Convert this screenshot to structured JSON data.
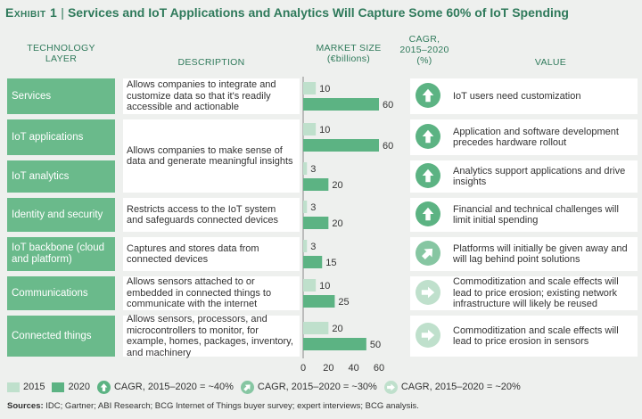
{
  "title": {
    "exhibit": "Exhibit 1",
    "separator": "|",
    "text": "Services and IoT Applications and Analytics Will Capture Some 60% of IoT Spending"
  },
  "headers": {
    "layer_line1": "TECHNOLOGY",
    "layer_line2": "LAYER",
    "description": "DESCRIPTION",
    "market_line1": "MARKET SIZE",
    "market_line2": "(€billions)",
    "cagr_line1": "CAGR,",
    "cagr_line2": "2015–2020",
    "cagr_line3": "(%)",
    "value": "VALUE"
  },
  "colors": {
    "s2015": "#bfe0cc",
    "s2020": "#5cb383",
    "label_bg": "#6aba8b",
    "icon_40": "#5cb383",
    "icon_30": "#86c6a2",
    "icon_20": "#bfe0cc"
  },
  "rows": [
    {
      "layer": "Services",
      "description": "Allows companies to integrate and customize data so that it's readily accessible and actionable",
      "value": "IoT users need customization",
      "cagr": "~40%",
      "icon": "arrow-up-icon"
    },
    {
      "layer": "IoT applications",
      "description": "Allows companies to make sense of data and generate meaningful insights",
      "value": "Application and software development precedes hardware rollout",
      "cagr": "~40%",
      "icon": "arrow-up-icon"
    },
    {
      "layer": "IoT analytics",
      "description": "",
      "value": "Analytics support applications and drive insights",
      "cagr": "~40%",
      "icon": "arrow-up-icon"
    },
    {
      "layer": "Identity and security",
      "description": "Restricts access to the IoT system and safeguards connected devices",
      "value": "Financial and technical challenges will limit initial spending",
      "cagr": "~40%",
      "icon": "arrow-up-icon"
    },
    {
      "layer": "IoT backbone (cloud and platform)",
      "description": "Captures and stores data from connected devices",
      "value": "Platforms will initially be given away and will lag behind point solutions",
      "cagr": "~30%",
      "icon": "arrow-diagonal-icon"
    },
    {
      "layer": "Communications",
      "description": "Allows sensors attached to or embedded in connected things to communicate with the internet",
      "value": "Commoditization and scale effects will lead to price erosion; existing network infrastructure will likely be reused",
      "cagr": "~20%",
      "icon": "arrow-right-icon"
    },
    {
      "layer": "Connected things",
      "description": "Allows sensors, processors, and microcontrollers to monitor, for example, homes, packages, inventory, and machinery",
      "value": "Commoditization and scale effects will lead to price erosion in sensors",
      "cagr": "~20%",
      "icon": "arrow-right-icon"
    }
  ],
  "legend": {
    "s2015": "2015",
    "s2020": "2020",
    "cagr40": "CAGR, 2015–2020 = ~40%",
    "cagr30": "CAGR, 2015–2020 = ~30%",
    "cagr20": "CAGR, 2015–2020 = ~20%"
  },
  "sources_label": "Sources:",
  "sources_text": "IDC; Gartner; ABI Research; BCG Internet of Things buyer survey; expert interviews; BCG analysis.",
  "chart_data": {
    "type": "bar",
    "orientation": "horizontal",
    "categories": [
      "Services",
      "IoT applications",
      "IoT analytics",
      "Identity and security",
      "IoT backbone (cloud and platform)",
      "Communications",
      "Connected things"
    ],
    "series": [
      {
        "name": "2015",
        "values": [
          10,
          10,
          3,
          3,
          3,
          10,
          20
        ]
      },
      {
        "name": "2020",
        "values": [
          60,
          60,
          20,
          20,
          15,
          25,
          50
        ]
      }
    ],
    "xlabel": "",
    "xlim": [
      0,
      60
    ],
    "xticks": [
      0,
      20,
      40,
      60
    ],
    "grid": false
  }
}
